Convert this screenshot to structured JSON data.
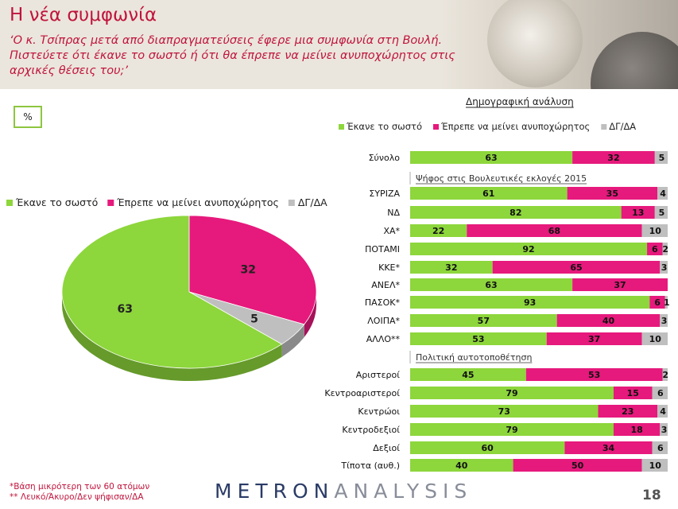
{
  "header": {
    "title": "Η νέα συμφωνία",
    "question": "‘Ο κ. Τσίπρας μετά από διαπραγματεύσεις έφερε μια συμφωνία στη Βουλή. Πιστεύετε ότι έκανε το σωστό ή ότι θα έπρεπε να μείνει ανυποχώρητος στις αρχικές θέσεις του;’"
  },
  "unit_label": "%",
  "chart_data": [
    {
      "type": "pie",
      "style": "3d",
      "legend_position": "top",
      "series": [
        {
          "name": "Έκανε το σωστό",
          "value": 63,
          "color": "#8dd63c"
        },
        {
          "name": "Έπρεπε να μείνει ανυποχώρητος",
          "value": 32,
          "color": "#e6197c"
        },
        {
          "name": "ΔΓ/ΔΑ",
          "value": 5,
          "color": "#bfbfbf"
        }
      ]
    },
    {
      "type": "bar",
      "orientation": "horizontal",
      "stacked": true,
      "title": "Δημογραφική ανάλυση",
      "legend_position": "top",
      "xlim": [
        0,
        100
      ],
      "series": [
        {
          "name": "Έκανε το σωστό",
          "color": "#8dd63c"
        },
        {
          "name": "Έπρεπε να μείνει ανυποχώρητος",
          "color": "#e6197c"
        },
        {
          "name": "ΔΓ/ΔΑ",
          "color": "#bfbfbf"
        }
      ],
      "groups": [
        {
          "label": "",
          "rows": [
            {
              "category": "Σύνολο",
              "values": [
                63,
                32,
                5
              ]
            }
          ]
        },
        {
          "label": "Ψήφος στις Βουλευτικές εκλογές 2015",
          "rows": [
            {
              "category": "ΣΥΡΙΖΑ",
              "values": [
                61,
                35,
                4
              ]
            },
            {
              "category": "ΝΔ",
              "values": [
                82,
                13,
                5
              ]
            },
            {
              "category": "ΧΑ*",
              "values": [
                22,
                68,
                10
              ]
            },
            {
              "category": "ΠΟΤΑΜΙ",
              "values": [
                92,
                6,
                2
              ]
            },
            {
              "category": "ΚΚΕ*",
              "values": [
                32,
                65,
                3
              ]
            },
            {
              "category": "ΑΝΕΛ*",
              "values": [
                63,
                37,
                0
              ]
            },
            {
              "category": "ΠΑΣΟΚ*",
              "values": [
                93,
                6,
                1
              ]
            },
            {
              "category": "ΛΟΙΠΑ*",
              "values": [
                57,
                40,
                3
              ]
            },
            {
              "category": "ΑΛΛΟ**",
              "values": [
                53,
                37,
                10
              ]
            }
          ]
        },
        {
          "label": "Πολιτική αυτοτοποθέτηση",
          "rows": [
            {
              "category": "Αριστεροί",
              "values": [
                45,
                53,
                2
              ]
            },
            {
              "category": "Κεντροαριστεροί",
              "values": [
                79,
                15,
                6
              ]
            },
            {
              "category": "Κεντρώοι",
              "values": [
                73,
                23,
                4
              ]
            },
            {
              "category": "Κεντροδεξιοί",
              "values": [
                79,
                18,
                3
              ]
            },
            {
              "category": "Δεξιοί",
              "values": [
                60,
                34,
                6
              ]
            },
            {
              "category": "Τίποτα (αυθ.)",
              "values": [
                40,
                50,
                10
              ]
            }
          ]
        }
      ]
    }
  ],
  "footnotes": [
    "*Βάση μικρότερη των 60 ατόμων",
    "** Λευκό/Άκυρο/Δεν ψήφισαν/ΔΑ"
  ],
  "logo": {
    "part1": "METRON",
    "part2": "ANALYSIS"
  },
  "page_number": "18"
}
